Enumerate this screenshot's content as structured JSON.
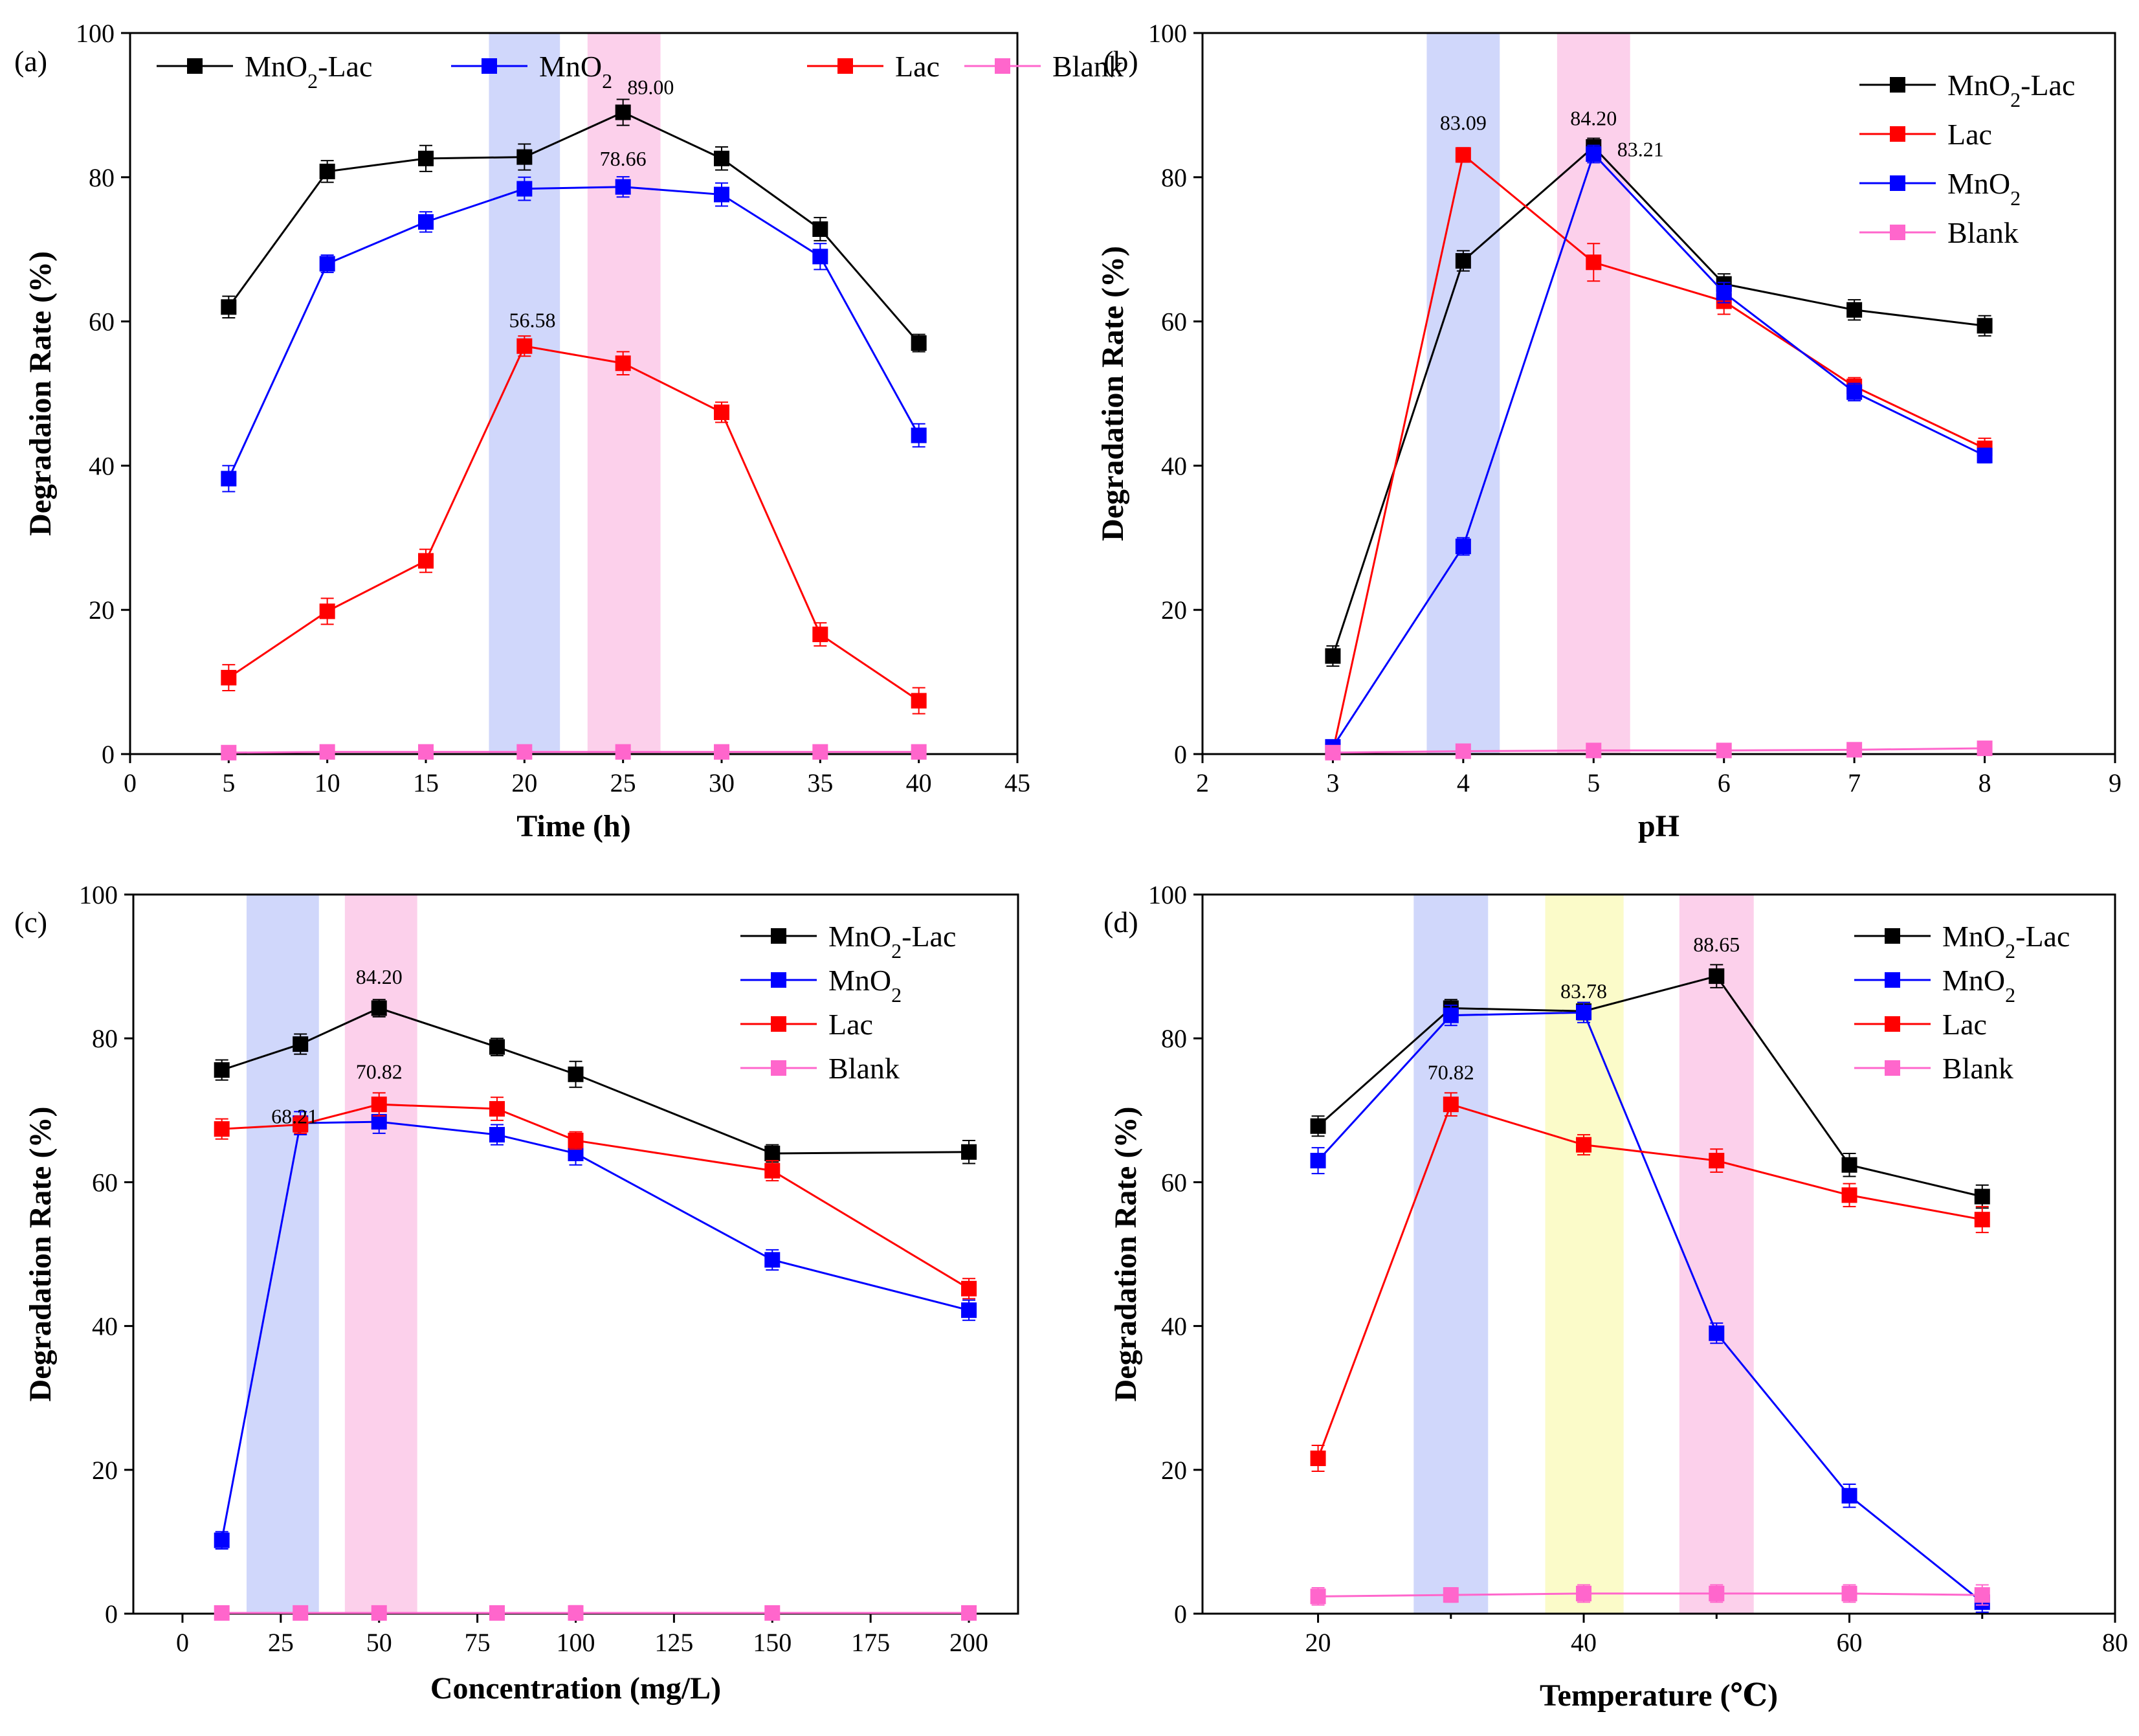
{
  "colors": {
    "MnO2-Lac": "#000000",
    "MnO2": "#0000ff",
    "Lac": "#ff0000",
    "Blank": "#ff66cc",
    "band_blue": "#c8d0fa",
    "band_pink": "#fcc8e8",
    "band_yellow": "#fafac0"
  },
  "chart_data": [
    {
      "panel": "(a)",
      "type": "line",
      "xlabel": "Time (h)",
      "ylabel": "Degradaion Rate (%)",
      "xlim": [
        0,
        45
      ],
      "ylim": [
        0,
        100
      ],
      "xticks": [
        0,
        5,
        10,
        15,
        20,
        25,
        30,
        35,
        40,
        45
      ],
      "yticks": [
        0,
        20,
        40,
        60,
        80,
        100
      ],
      "legend_position": "top",
      "x": [
        5,
        10,
        15,
        20,
        25,
        30,
        35,
        40
      ],
      "series": [
        {
          "name": "MnO2-Lac",
          "legend_label": "MnO₂-Lac",
          "color_key": "MnO2-Lac",
          "values": [
            62.0,
            80.8,
            82.6,
            82.8,
            89.0,
            82.6,
            72.8,
            57.0
          ],
          "errors": [
            1.5,
            1.5,
            1.8,
            1.8,
            1.8,
            1.6,
            1.6,
            1.2
          ]
        },
        {
          "name": "MnO2",
          "legend_label": "MnO₂",
          "color_key": "MnO2",
          "values": [
            38.2,
            68.0,
            73.8,
            78.4,
            78.66,
            77.6,
            69.0,
            44.2
          ],
          "errors": [
            1.8,
            1.2,
            1.4,
            1.6,
            1.4,
            1.6,
            1.8,
            1.6
          ]
        },
        {
          "name": "Lac",
          "legend_label": "Lac",
          "color_key": "Lac",
          "values": [
            10.6,
            19.8,
            26.8,
            56.58,
            54.2,
            47.4,
            16.6,
            7.4
          ],
          "errors": [
            1.8,
            1.8,
            1.6,
            1.4,
            1.6,
            1.4,
            1.6,
            1.8
          ]
        },
        {
          "name": "Blank",
          "legend_label": "Blank",
          "color_key": "Blank",
          "values": [
            0.2,
            0.3,
            0.3,
            0.3,
            0.3,
            0.3,
            0.3,
            0.3
          ],
          "errors": [
            0.8,
            0.8,
            0.8,
            0.8,
            0.8,
            0.8,
            0.8,
            0.8
          ]
        }
      ],
      "bands": [
        {
          "from": 18.2,
          "to": 21.8,
          "color_key": "band_blue"
        },
        {
          "from": 23.2,
          "to": 26.9,
          "color_key": "band_pink"
        }
      ],
      "annotations": [
        {
          "text": "89.00",
          "x": 26.4,
          "y": 91.5
        },
        {
          "text": "78.66",
          "x": 25.0,
          "y": 81.6
        },
        {
          "text": "56.58",
          "x": 20.4,
          "y": 59.2
        }
      ]
    },
    {
      "panel": "(b)",
      "type": "line",
      "xlabel": "pH",
      "ylabel": "Degradation Rate (%)",
      "xlim": [
        2,
        9
      ],
      "ylim": [
        0,
        100
      ],
      "xticks": [
        2,
        3,
        4,
        5,
        6,
        7,
        8,
        9
      ],
      "yticks": [
        0,
        20,
        40,
        60,
        80,
        100
      ],
      "legend_position": "top-right",
      "x": [
        3,
        4,
        5,
        6,
        7,
        8
      ],
      "series": [
        {
          "name": "MnO2-Lac",
          "legend_label": "MnO₂-Lac",
          "color_key": "MnO2-Lac",
          "values": [
            13.6,
            68.4,
            84.2,
            65.2,
            61.6,
            59.4
          ],
          "errors": [
            1.4,
            1.4,
            1.2,
            1.4,
            1.4,
            1.4
          ]
        },
        {
          "name": "Lac",
          "legend_label": "Lac",
          "color_key": "Lac",
          "values": [
            0.4,
            83.09,
            68.2,
            62.8,
            51.0,
            42.4
          ],
          "errors": [
            0.8,
            1.0,
            2.6,
            1.8,
            1.2,
            1.4
          ]
        },
        {
          "name": "MnO2",
          "legend_label": "MnO₂",
          "color_key": "MnO2",
          "values": [
            1.0,
            28.8,
            83.21,
            64.0,
            50.2,
            41.4
          ],
          "errors": [
            0.8,
            1.2,
            1.2,
            1.4,
            1.2,
            1.0
          ]
        },
        {
          "name": "Blank",
          "legend_label": "Blank",
          "color_key": "Blank",
          "values": [
            0.2,
            0.4,
            0.5,
            0.5,
            0.6,
            0.8
          ],
          "errors": [
            0.6,
            0.6,
            0.6,
            0.6,
            0.6,
            0.6
          ]
        }
      ],
      "bands": [
        {
          "from": 3.72,
          "to": 4.28,
          "color_key": "band_blue"
        },
        {
          "from": 4.72,
          "to": 5.28,
          "color_key": "band_pink"
        }
      ],
      "annotations": [
        {
          "text": "83.09",
          "x": 4.0,
          "y": 86.6
        },
        {
          "text": "84.20",
          "x": 5.0,
          "y": 87.2
        },
        {
          "text": "83.21",
          "x": 5.36,
          "y": 82.9
        }
      ]
    },
    {
      "panel": "(c)",
      "type": "line",
      "xlabel": "Concentration (mg/L)",
      "ylabel": "Degradation Rate (%)",
      "xlim": [
        -12.5,
        212.5
      ],
      "ylim": [
        0,
        100
      ],
      "xticks": [
        0,
        25,
        50,
        75,
        100,
        125,
        150,
        175,
        200
      ],
      "yticks": [
        0,
        20,
        40,
        60,
        80,
        100
      ],
      "legend_position": "top-right",
      "x": [
        10,
        30,
        50,
        80,
        100,
        150,
        200
      ],
      "series": [
        {
          "name": "MnO2-Lac",
          "legend_label": "MnO₂-Lac",
          "color_key": "MnO2-Lac",
          "values": [
            75.6,
            79.2,
            84.2,
            78.8,
            75.0,
            64.0,
            64.2
          ],
          "errors": [
            1.4,
            1.4,
            1.2,
            1.2,
            1.8,
            1.2,
            1.6
          ]
        },
        {
          "name": "MnO2",
          "legend_label": "MnO₂",
          "color_key": "MnO2",
          "values": [
            10.2,
            68.21,
            68.4,
            66.6,
            64.0,
            49.2,
            42.2
          ],
          "errors": [
            1.2,
            1.6,
            1.6,
            1.4,
            1.6,
            1.4,
            1.4
          ]
        },
        {
          "name": "Lac",
          "legend_label": "Lac",
          "color_key": "Lac",
          "values": [
            67.4,
            68.0,
            70.82,
            70.2,
            65.8,
            61.6,
            45.2
          ],
          "errors": [
            1.4,
            1.2,
            1.6,
            1.6,
            1.2,
            1.4,
            1.4
          ]
        },
        {
          "name": "Blank",
          "legend_label": "Blank",
          "color_key": "Blank",
          "values": [
            0.1,
            0.1,
            0.1,
            0.1,
            0.1,
            0.1,
            0.1
          ],
          "errors": [
            0.8,
            0.8,
            0.8,
            0.8,
            1.0,
            0.8,
            0.6
          ]
        }
      ],
      "bands": [
        {
          "from": 16.3,
          "to": 34.7,
          "color_key": "band_blue"
        },
        {
          "from": 41.3,
          "to": 59.7,
          "color_key": "band_pink"
        }
      ],
      "annotations": [
        {
          "text": "84.20",
          "x": 50.0,
          "y": 87.6
        },
        {
          "text": "70.82",
          "x": 50.0,
          "y": 74.4
        },
        {
          "text": "68.21",
          "x": 28.5,
          "y": 68.2
        }
      ]
    },
    {
      "panel": "(d)",
      "type": "line",
      "xlabel": "Temperature (℃)",
      "ylabel": "Degradation Rate (%)",
      "xlim": [
        11.3,
        80
      ],
      "ylim": [
        0,
        100
      ],
      "xticks": [
        20,
        40,
        60,
        80
      ],
      "minor_xticks": [
        30,
        50,
        70
      ],
      "yticks": [
        0,
        20,
        40,
        60,
        80,
        100
      ],
      "legend_position": "top-right",
      "x": [
        20,
        30,
        40,
        50,
        60,
        70
      ],
      "series": [
        {
          "name": "MnO2-Lac",
          "legend_label": "MnO₂-Lac",
          "color_key": "MnO2-Lac",
          "values": [
            67.8,
            84.2,
            83.78,
            88.65,
            62.4,
            58.0
          ],
          "errors": [
            1.4,
            1.2,
            1.2,
            1.6,
            1.6,
            1.6
          ]
        },
        {
          "name": "MnO2",
          "legend_label": "MnO₂",
          "color_key": "MnO2",
          "values": [
            63.0,
            83.2,
            83.6,
            39.0,
            16.4,
            1.6
          ],
          "errors": [
            1.8,
            1.4,
            1.4,
            1.4,
            1.6,
            1.4
          ]
        },
        {
          "name": "Lac",
          "legend_label": "Lac",
          "color_key": "Lac",
          "values": [
            21.6,
            70.82,
            65.2,
            63.0,
            58.2,
            54.8
          ],
          "errors": [
            1.8,
            1.6,
            1.4,
            1.6,
            1.6,
            1.8
          ]
        },
        {
          "name": "Blank",
          "legend_label": "Blank",
          "color_key": "Blank",
          "values": [
            2.4,
            2.6,
            2.8,
            2.8,
            2.8,
            2.6
          ],
          "errors": [
            1.2,
            1.0,
            1.2,
            1.2,
            1.2,
            1.4
          ]
        }
      ],
      "bands": [
        {
          "from": 27.2,
          "to": 32.8,
          "color_key": "band_blue"
        },
        {
          "from": 37.1,
          "to": 43.0,
          "color_key": "band_yellow"
        },
        {
          "from": 47.2,
          "to": 52.8,
          "color_key": "band_pink"
        }
      ],
      "annotations": [
        {
          "text": "70.82",
          "x": 30.0,
          "y": 74.3
        },
        {
          "text": "83.78",
          "x": 40.0,
          "y": 85.6
        },
        {
          "text": "88.65",
          "x": 50.0,
          "y": 92.1
        }
      ]
    }
  ]
}
